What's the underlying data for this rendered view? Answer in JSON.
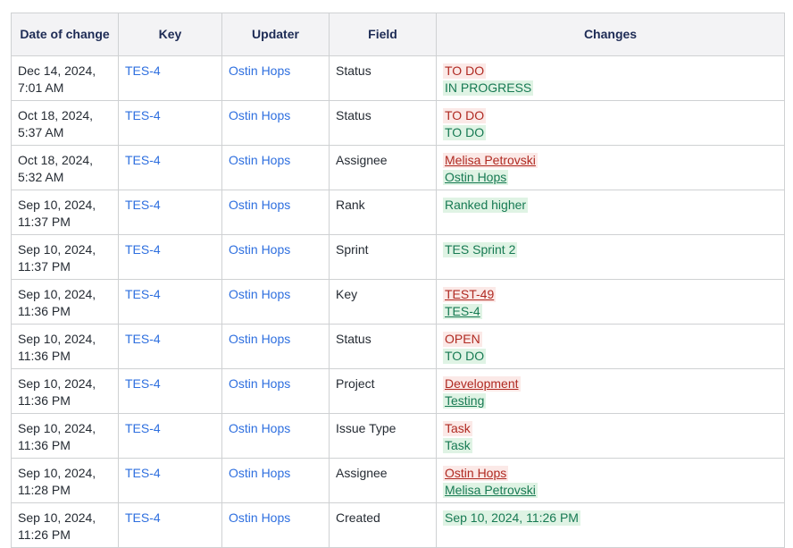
{
  "table": {
    "columns": [
      {
        "id": "date",
        "label": "Date of change"
      },
      {
        "id": "key",
        "label": "Key"
      },
      {
        "id": "updater",
        "label": "Updater"
      },
      {
        "id": "field",
        "label": "Field"
      },
      {
        "id": "changes",
        "label": "Changes"
      }
    ],
    "rows": [
      {
        "date": "Dec 14, 2024, 7:01 AM",
        "key": "TES-4",
        "updater": "Ostin Hops",
        "field": "Status",
        "changes": [
          {
            "text": "TO DO",
            "kind": "removed",
            "link": false
          },
          {
            "text": "IN PROGRESS",
            "kind": "added",
            "link": false
          }
        ]
      },
      {
        "date": "Oct 18, 2024, 5:37 AM",
        "key": "TES-4",
        "updater": "Ostin Hops",
        "field": "Status",
        "changes": [
          {
            "text": "TO DO",
            "kind": "removed",
            "link": false
          },
          {
            "text": "TO DO",
            "kind": "added",
            "link": false
          }
        ]
      },
      {
        "date": "Oct 18, 2024, 5:32 AM",
        "key": "TES-4",
        "updater": "Ostin Hops",
        "field": "Assignee",
        "changes": [
          {
            "text": "Melisa Petrovski",
            "kind": "removed",
            "link": true
          },
          {
            "text": "Ostin Hops",
            "kind": "added",
            "link": true
          }
        ]
      },
      {
        "date": "Sep 10, 2024, 11:37 PM",
        "key": "TES-4",
        "updater": "Ostin Hops",
        "field": "Rank",
        "changes": [
          {
            "text": "Ranked higher",
            "kind": "added",
            "link": false
          }
        ]
      },
      {
        "date": "Sep 10, 2024, 11:37 PM",
        "key": "TES-4",
        "updater": "Ostin Hops",
        "field": "Sprint",
        "changes": [
          {
            "text": "TES Sprint 2",
            "kind": "added",
            "link": false
          }
        ]
      },
      {
        "date": "Sep 10, 2024, 11:36 PM",
        "key": "TES-4",
        "updater": "Ostin Hops",
        "field": "Key",
        "changes": [
          {
            "text": "TEST-49",
            "kind": "removed",
            "link": true
          },
          {
            "text": "TES-4",
            "kind": "added",
            "link": true
          }
        ]
      },
      {
        "date": "Sep 10, 2024, 11:36 PM",
        "key": "TES-4",
        "updater": "Ostin Hops",
        "field": "Status",
        "changes": [
          {
            "text": "OPEN",
            "kind": "removed",
            "link": false
          },
          {
            "text": "TO DO",
            "kind": "added",
            "link": false
          }
        ]
      },
      {
        "date": "Sep 10, 2024, 11:36 PM",
        "key": "TES-4",
        "updater": "Ostin Hops",
        "field": "Project",
        "changes": [
          {
            "text": "Development",
            "kind": "removed",
            "link": true
          },
          {
            "text": "Testing",
            "kind": "added",
            "link": true
          }
        ]
      },
      {
        "date": "Sep 10, 2024, 11:36 PM",
        "key": "TES-4",
        "updater": "Ostin Hops",
        "field": "Issue Type",
        "changes": [
          {
            "text": "Task",
            "kind": "removed",
            "link": false
          },
          {
            "text": "Task",
            "kind": "added",
            "link": false
          }
        ]
      },
      {
        "date": "Sep 10, 2024, 11:28 PM",
        "key": "TES-4",
        "updater": "Ostin Hops",
        "field": "Assignee",
        "changes": [
          {
            "text": "Ostin Hops",
            "kind": "removed",
            "link": true
          },
          {
            "text": "Melisa Petrovski",
            "kind": "added",
            "link": true
          }
        ]
      },
      {
        "date": "Sep 10, 2024, 11:26 PM",
        "key": "TES-4",
        "updater": "Ostin Hops",
        "field": "Created",
        "changes": [
          {
            "text": "Sep 10, 2024, 11:26 PM",
            "kind": "added",
            "link": false
          }
        ]
      }
    ]
  },
  "colors": {
    "link_blue": "#2e6fdf",
    "removed_text": "#b02a22",
    "removed_bg": "#fbe9e7",
    "added_text": "#177a53",
    "added_bg": "#dff3e4",
    "header_text": "#1d2b55",
    "header_bg": "#f3f3f5",
    "border": "#cfd1d3"
  }
}
